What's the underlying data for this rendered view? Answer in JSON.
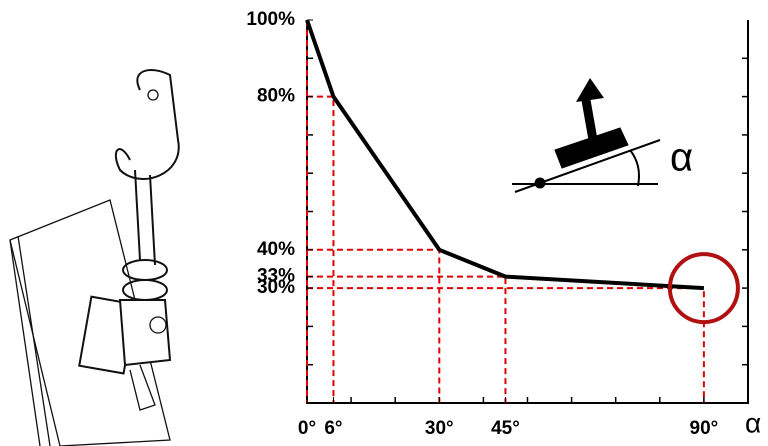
{
  "chart_data": {
    "type": "line",
    "x": [
      0,
      6,
      30,
      45,
      90
    ],
    "values": [
      100,
      80,
      40,
      33,
      30
    ],
    "color": "#000000",
    "guide_color": "#e00000",
    "xlabel": "α",
    "annotations": [
      "α"
    ],
    "xlim": [
      0,
      100
    ],
    "ylim": [
      0,
      100
    ],
    "xticks": [
      {
        "value": 0,
        "label": "0°"
      },
      {
        "value": 6,
        "label": "6°"
      },
      {
        "value": 30,
        "label": "30°"
      },
      {
        "value": 45,
        "label": "45°"
      },
      {
        "value": 90,
        "label": "90°"
      }
    ],
    "yticks": [
      {
        "value": 30,
        "label": "30%"
      },
      {
        "value": 33,
        "label": "33%"
      },
      {
        "value": 40,
        "label": "40%"
      },
      {
        "value": 80,
        "label": "80%"
      },
      {
        "value": 100,
        "label": "100%"
      }
    ]
  }
}
